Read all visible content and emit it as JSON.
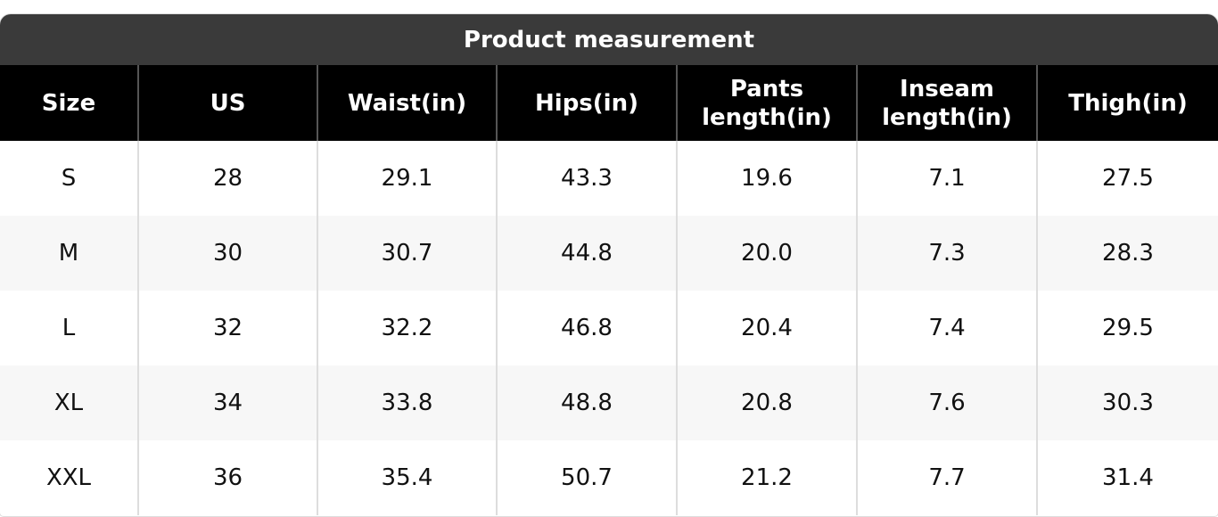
{
  "header": {
    "title": "Product measurement"
  },
  "table": {
    "columns": [
      "Size",
      "US",
      "Waist(in)",
      "Hips(in)",
      "Pants length(in)",
      "Inseam length(in)",
      "Thigh(in)"
    ],
    "rows": [
      [
        "S",
        "28",
        "29.1",
        "43.3",
        "19.6",
        "7.1",
        "27.5"
      ],
      [
        "M",
        "30",
        "30.7",
        "44.8",
        "20.0",
        "7.3",
        "28.3"
      ],
      [
        "L",
        "32",
        "32.2",
        "46.8",
        "20.4",
        "7.4",
        "29.5"
      ],
      [
        "XL",
        "34",
        "33.8",
        "48.8",
        "20.8",
        "7.6",
        "30.3"
      ],
      [
        "XXL",
        "36",
        "35.4",
        "50.7",
        "21.2",
        "7.7",
        "31.4"
      ]
    ]
  }
}
